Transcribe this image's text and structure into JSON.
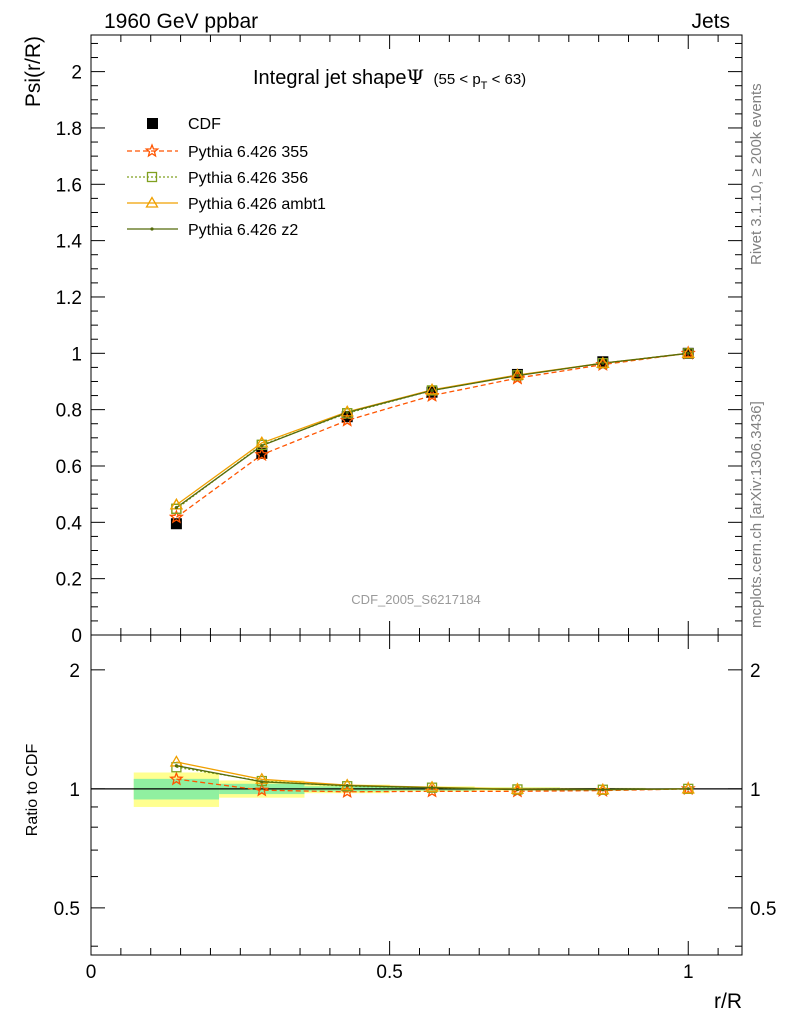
{
  "header": {
    "left": "1960 GeV ppbar",
    "right": "Jets"
  },
  "side_labels": {
    "rivet": "Rivet 3.1.10, ≥ 200k events",
    "mcplots": "mcplots.cern.ch [arXiv:1306.3436]"
  },
  "chart_data": {
    "type": "line",
    "title_main": "Integral jet shape",
    "title_symbol": "Ψ",
    "title_range_pre": "(55 < p",
    "title_range_sub": "T",
    "title_range_post": " < 63)",
    "analysis_label": "CDF_2005_S6217184",
    "xlabel": "r/R",
    "ylabel": "Psi(r/R)",
    "ratio_ylabel": "Ratio to CDF",
    "xlim": [
      0,
      1.09
    ],
    "ylim": [
      0,
      2.13
    ],
    "ratio_ylim": [
      0.38,
      2.45
    ],
    "x_ticks": [
      {
        "value": 0,
        "label": "0"
      },
      {
        "value": 0.5,
        "label": "0.5"
      },
      {
        "value": 1,
        "label": "1"
      }
    ],
    "y_ticks": [
      {
        "value": 0,
        "label": "0"
      },
      {
        "value": 0.2,
        "label": "0.2"
      },
      {
        "value": 0.4,
        "label": "0.4"
      },
      {
        "value": 0.6,
        "label": "0.6"
      },
      {
        "value": 0.8,
        "label": "0.8"
      },
      {
        "value": 1.0,
        "label": "1"
      },
      {
        "value": 1.2,
        "label": "1.2"
      },
      {
        "value": 1.4,
        "label": "1.4"
      },
      {
        "value": 1.6,
        "label": "1.6"
      },
      {
        "value": 1.8,
        "label": "1.8"
      },
      {
        "value": 2.0,
        "label": "2"
      }
    ],
    "ratio_ticks": [
      {
        "value": 0.5,
        "label": "0.5"
      },
      {
        "value": 1,
        "label": "1"
      },
      {
        "value": 2,
        "label": "2"
      }
    ],
    "x": [
      0.143,
      0.286,
      0.429,
      0.571,
      0.714,
      0.857,
      1.0
    ],
    "data": {
      "name": "CDF",
      "values": [
        0.395,
        0.645,
        0.775,
        0.862,
        0.925,
        0.97,
        1.0
      ],
      "errors": [
        0.012,
        0.01,
        0.008,
        0.006,
        0.004,
        0.003,
        0.0
      ],
      "band_inner": [
        0.06,
        0.03,
        0.015,
        0.01,
        0.006,
        0.004,
        0.0
      ],
      "band_outer": [
        0.1,
        0.05,
        0.025,
        0.015,
        0.01,
        0.006,
        0.0
      ],
      "color": "#000000"
    },
    "series": [
      {
        "name": "Pythia 6.426 355",
        "values": [
          0.418,
          0.64,
          0.762,
          0.85,
          0.912,
          0.96,
          1.0
        ],
        "color": "#ff5500",
        "dash": "5,3",
        "marker": "star"
      },
      {
        "name": "Pythia 6.426 356",
        "values": [
          0.448,
          0.675,
          0.787,
          0.868,
          0.922,
          0.965,
          1.0
        ],
        "color": "#80a020",
        "dash": "2,2",
        "marker": "square"
      },
      {
        "name": "Pythia 6.426 ambt1",
        "values": [
          0.462,
          0.682,
          0.792,
          0.87,
          0.923,
          0.965,
          1.0
        ],
        "color": "#f0a000",
        "dash": "",
        "marker": "triangle"
      },
      {
        "name": "Pythia 6.426 z2",
        "values": [
          0.452,
          0.672,
          0.79,
          0.868,
          0.921,
          0.965,
          1.0
        ],
        "color": "#556b0a",
        "dash": "",
        "marker": "dot"
      }
    ],
    "band_colors": {
      "outer": "#ffff90",
      "inner": "#90f0a0"
    }
  }
}
